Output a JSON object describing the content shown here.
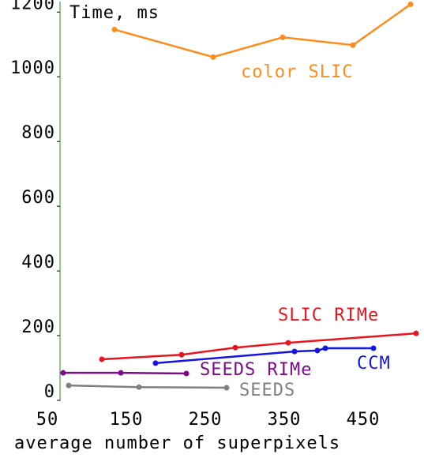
{
  "chart_data": {
    "type": "line",
    "ylabel": "Time, ms",
    "xlabel": "average number of superpixels",
    "xlim": [
      50,
      535
    ],
    "ylim": [
      0,
      1230
    ],
    "xticks": [
      50,
      150,
      250,
      350,
      450
    ],
    "yticks": [
      0,
      200,
      400,
      600,
      800,
      1000,
      1200
    ],
    "series": [
      {
        "name": "color SLIC",
        "color": "#ff8c1a",
        "x": [
          143,
          268,
          356,
          445,
          518
        ],
        "values": [
          1146,
          1061,
          1122,
          1098,
          1224
        ]
      },
      {
        "name": "SLIC RIMe",
        "color": "#e8141e",
        "x": [
          127,
          228,
          296,
          363,
          525
        ],
        "values": [
          127,
          141,
          163,
          178,
          207
        ]
      },
      {
        "name": "CCM",
        "color": "#1414e6",
        "x": [
          195,
          371,
          400,
          410,
          471
        ],
        "values": [
          115,
          151,
          154,
          161,
          161
        ]
      },
      {
        "name": "SEEDS RIMe",
        "color": "#800a8c",
        "x": [
          78,
          151,
          234
        ],
        "values": [
          85,
          85,
          83
        ]
      },
      {
        "name": "SEEDS",
        "color": "#808080",
        "x": [
          85,
          174,
          285
        ],
        "values": [
          46,
          41,
          39
        ]
      }
    ]
  }
}
